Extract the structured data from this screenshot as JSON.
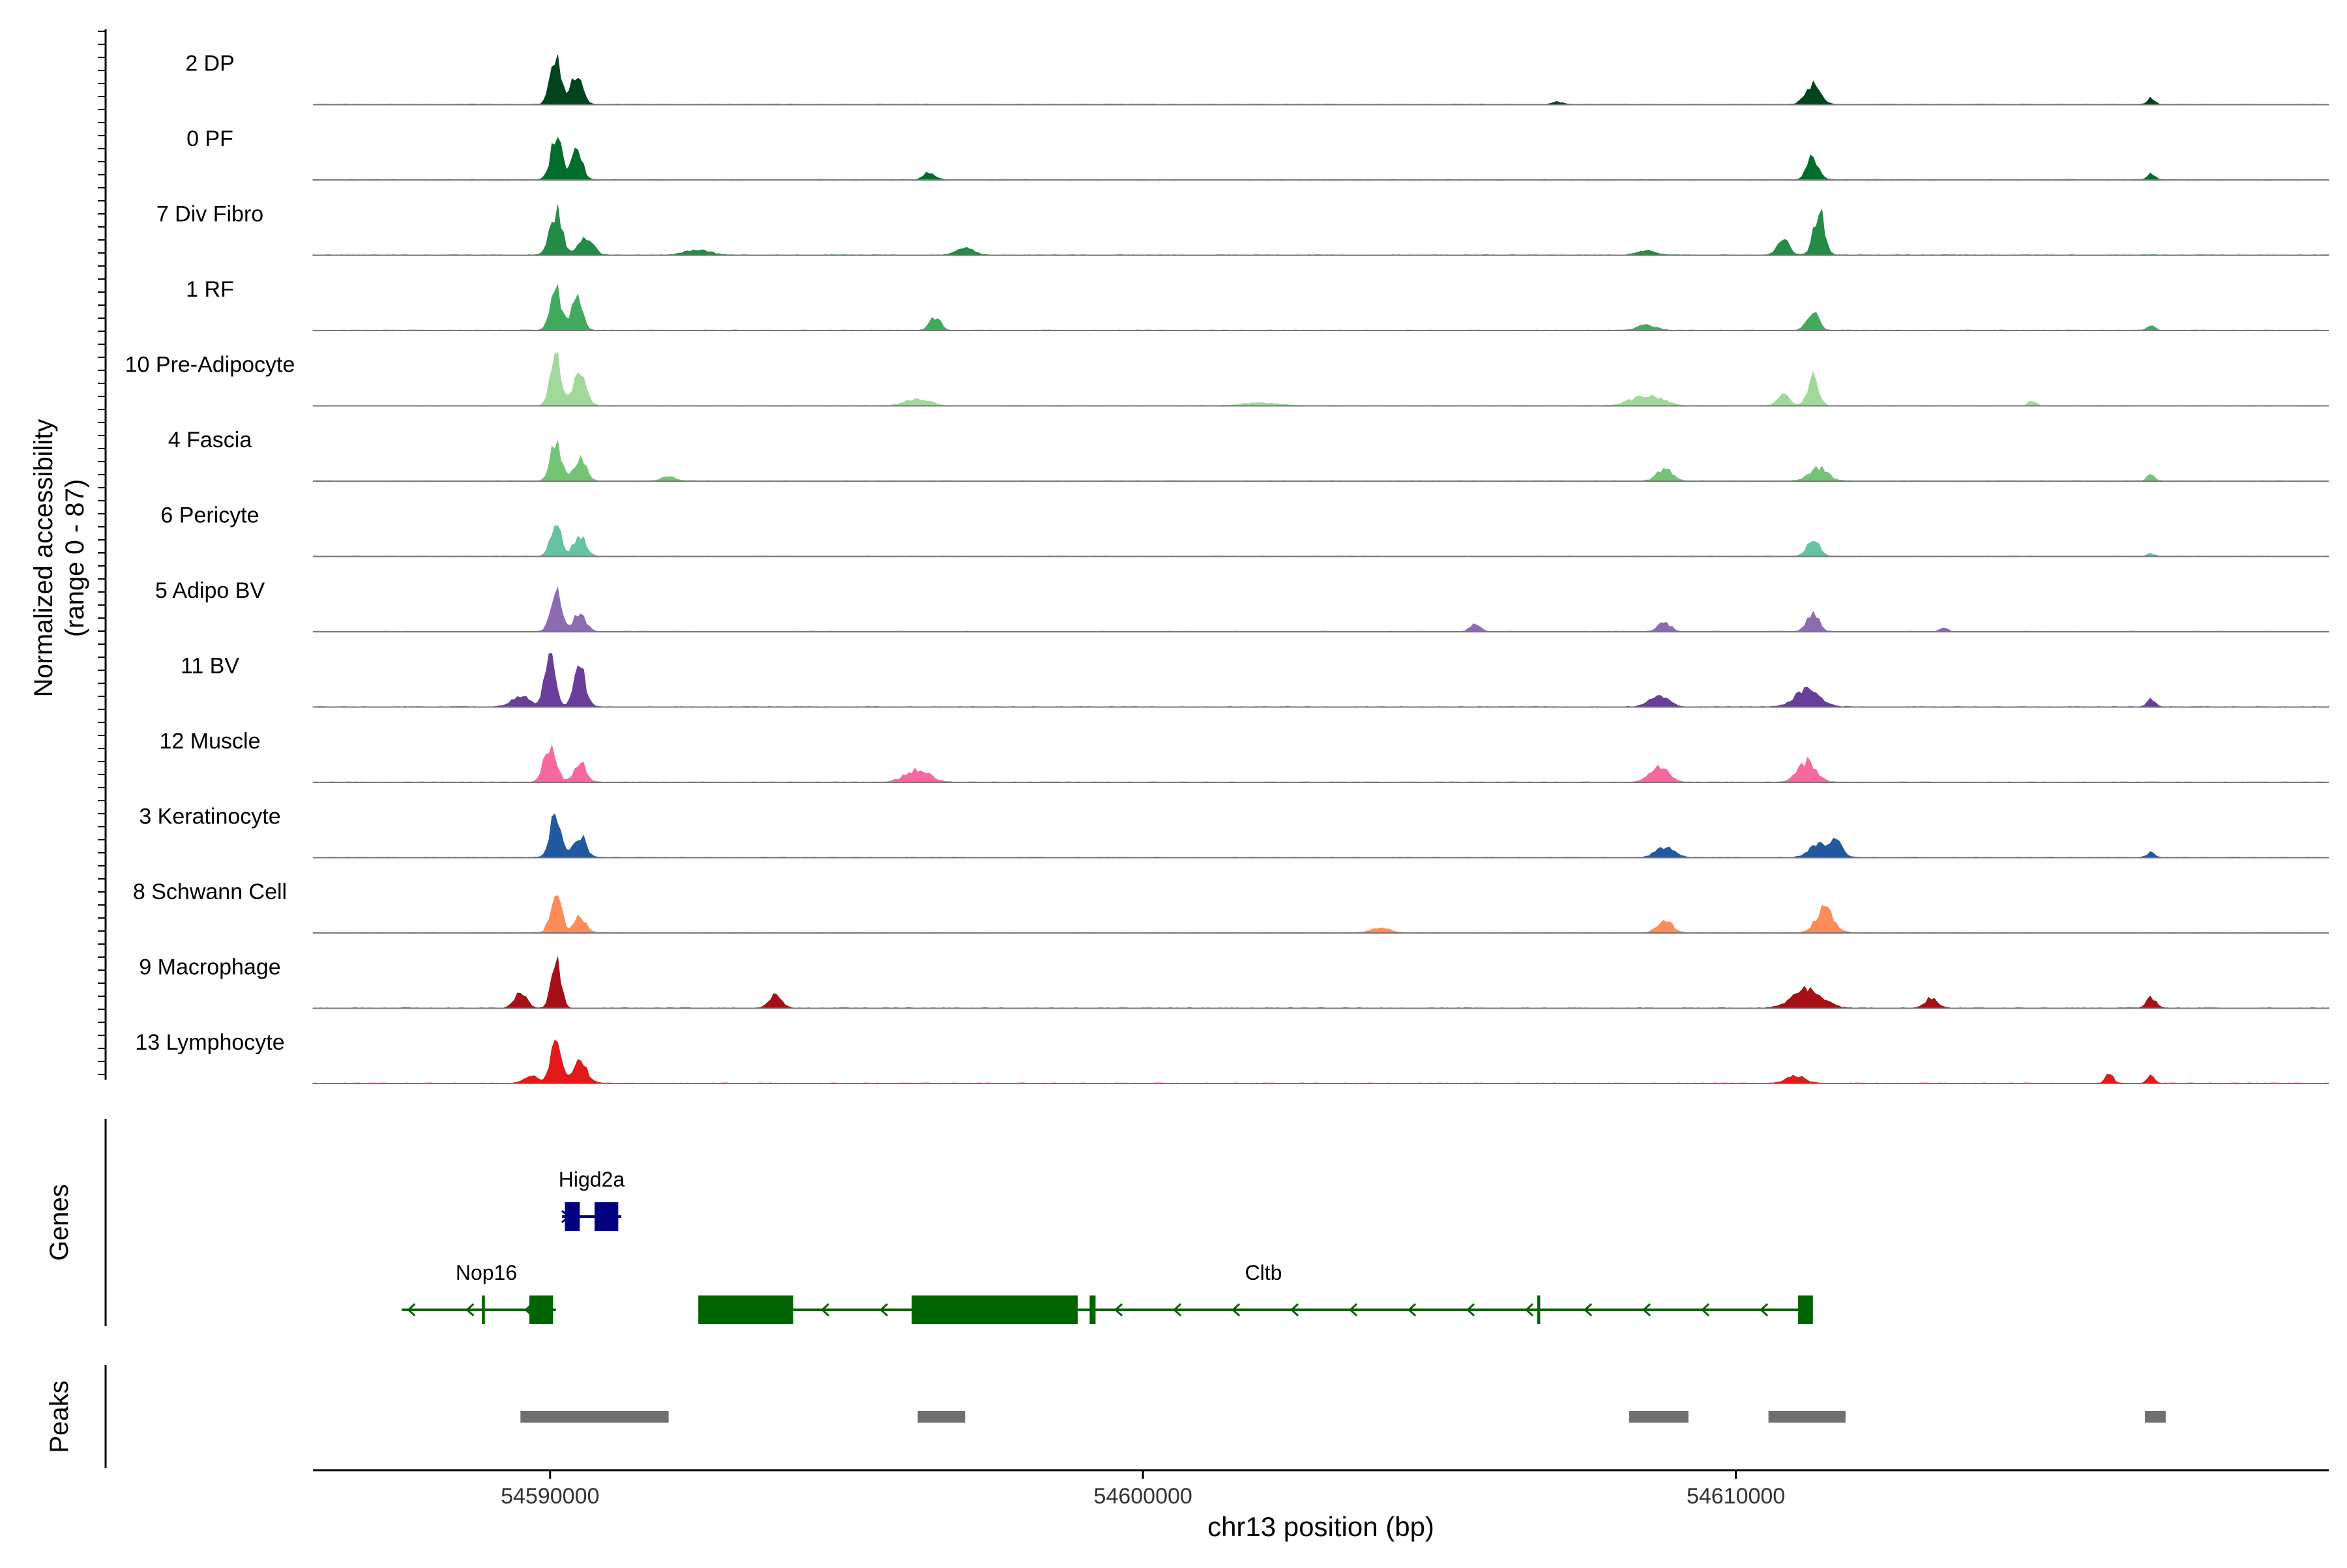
{
  "chart_data": {
    "type": "area",
    "title": "",
    "xlabel": "chr13 position (bp)",
    "ylabel_line1": "Normalized accessibility",
    "ylabel_line2": "(range 0 - 87)",
    "y_range": [
      0,
      87
    ],
    "xlim": [
      54586000,
      54620000
    ],
    "xticks": [
      {
        "value": 54590000,
        "label": "54590000"
      },
      {
        "value": 54600000,
        "label": "54600000"
      },
      {
        "value": 54610000,
        "label": "54610000"
      }
    ],
    "genes_label": "Genes",
    "peaks_label": "Peaks",
    "tracks": [
      {
        "name": "2 DP",
        "color": "#00441b",
        "peaks": [
          [
            54590100,
            0.95,
            90
          ],
          [
            54590450,
            0.6,
            90
          ],
          [
            54611300,
            0.38,
            120
          ],
          [
            54607000,
            0.05,
            80
          ],
          [
            54617000,
            0.12,
            60
          ]
        ]
      },
      {
        "name": "0 PF",
        "color": "#006d2c",
        "peaks": [
          [
            54590100,
            0.85,
            90
          ],
          [
            54590450,
            0.6,
            90
          ],
          [
            54596400,
            0.15,
            90
          ],
          [
            54611300,
            0.42,
            100
          ],
          [
            54617000,
            0.12,
            60
          ]
        ]
      },
      {
        "name": "7 Div Fibro",
        "color": "#238b45",
        "peaks": [
          [
            54590100,
            0.85,
            100
          ],
          [
            54590600,
            0.35,
            120
          ],
          [
            54592500,
            0.1,
            200
          ],
          [
            54597000,
            0.12,
            150
          ],
          [
            54608500,
            0.08,
            150
          ],
          [
            54610800,
            0.3,
            100
          ],
          [
            54611400,
            0.85,
            90
          ]
        ]
      },
      {
        "name": "1 RF",
        "color": "#41ab5d",
        "peaks": [
          [
            54590100,
            0.75,
            90
          ],
          [
            54590450,
            0.6,
            90
          ],
          [
            54596500,
            0.25,
            90
          ],
          [
            54608500,
            0.1,
            150
          ],
          [
            54611300,
            0.35,
            100
          ],
          [
            54617000,
            0.1,
            60
          ]
        ]
      },
      {
        "name": "10 Pre-Adipocyte",
        "color": "#a1d99b",
        "peaks": [
          [
            54590100,
            0.95,
            90
          ],
          [
            54590500,
            0.65,
            100
          ],
          [
            54596200,
            0.12,
            200
          ],
          [
            54602000,
            0.05,
            300
          ],
          [
            54608500,
            0.2,
            250
          ],
          [
            54610800,
            0.2,
            100
          ],
          [
            54611300,
            0.55,
            90
          ],
          [
            54615000,
            0.1,
            60
          ]
        ]
      },
      {
        "name": "4 Fascia",
        "color": "#74c476",
        "peaks": [
          [
            54590100,
            0.75,
            90
          ],
          [
            54590500,
            0.45,
            100
          ],
          [
            54592000,
            0.1,
            100
          ],
          [
            54608800,
            0.25,
            120
          ],
          [
            54611400,
            0.25,
            150
          ],
          [
            54617000,
            0.12,
            60
          ]
        ]
      },
      {
        "name": "6 Pericyte",
        "color": "#66c2a4",
        "peaks": [
          [
            54590100,
            0.65,
            90
          ],
          [
            54590500,
            0.4,
            100
          ],
          [
            54611300,
            0.35,
            100
          ],
          [
            54617000,
            0.05,
            60
          ]
        ]
      },
      {
        "name": "5 Adipo BV",
        "color": "#8c6bb1",
        "peaks": [
          [
            54590100,
            0.85,
            90
          ],
          [
            54590500,
            0.35,
            100
          ],
          [
            54605600,
            0.15,
            80
          ],
          [
            54608800,
            0.18,
            100
          ],
          [
            54611300,
            0.35,
            100
          ],
          [
            54613500,
            0.08,
            60
          ]
        ]
      },
      {
        "name": "11 BV",
        "color": "#6a3d9a",
        "peaks": [
          [
            54590000,
            0.95,
            90
          ],
          [
            54590500,
            0.85,
            90
          ],
          [
            54589500,
            0.2,
            150
          ],
          [
            54608700,
            0.25,
            150
          ],
          [
            54611200,
            0.35,
            200
          ],
          [
            54617000,
            0.18,
            60
          ]
        ]
      },
      {
        "name": "12 Muscle",
        "color": "#f768a1",
        "peaks": [
          [
            54590000,
            0.7,
            100
          ],
          [
            54590500,
            0.4,
            100
          ],
          [
            54596200,
            0.25,
            200
          ],
          [
            54608700,
            0.3,
            150
          ],
          [
            54611200,
            0.4,
            150
          ]
        ]
      },
      {
        "name": "3 Keratinocyte",
        "color": "#2159a0",
        "peaks": [
          [
            54590100,
            0.9,
            90
          ],
          [
            54590500,
            0.45,
            100
          ],
          [
            54608800,
            0.2,
            150
          ],
          [
            54611400,
            0.25,
            150
          ],
          [
            54611700,
            0.3,
            100
          ],
          [
            54617000,
            0.1,
            60
          ]
        ]
      },
      {
        "name": "8 Schwann Cell",
        "color": "#fc8d59",
        "peaks": [
          [
            54590100,
            0.75,
            90
          ],
          [
            54590500,
            0.3,
            100
          ],
          [
            54604000,
            0.1,
            150
          ],
          [
            54608800,
            0.25,
            120
          ],
          [
            54611500,
            0.45,
            150
          ]
        ]
      },
      {
        "name": "9 Macrophage",
        "color": "#a50f15",
        "peaks": [
          [
            54590100,
            1.0,
            80
          ],
          [
            54589500,
            0.3,
            100
          ],
          [
            54593800,
            0.25,
            100
          ],
          [
            54611200,
            0.35,
            250
          ],
          [
            54613300,
            0.2,
            100
          ],
          [
            54617000,
            0.2,
            80
          ]
        ]
      },
      {
        "name": "13 Lymphocyte",
        "color": "#e31a1c",
        "peaks": [
          [
            54590100,
            1.0,
            80
          ],
          [
            54590500,
            0.4,
            120
          ],
          [
            54589700,
            0.15,
            120
          ],
          [
            54611000,
            0.15,
            150
          ],
          [
            54616300,
            0.2,
            60
          ],
          [
            54617000,
            0.15,
            60
          ]
        ]
      }
    ],
    "genes": [
      {
        "name": "Higd2a",
        "color": "#000080",
        "strand": "+",
        "start": 54590200,
        "end": 54591200,
        "row": 0,
        "exons": [
          [
            54590250,
            54590500
          ],
          [
            54590750,
            54591150
          ]
        ]
      },
      {
        "name": "Nop16",
        "color": "#006400",
        "strand": "-",
        "start": 54587500,
        "end": 54590100,
        "row": 1,
        "exons": [
          [
            54588850,
            54588900
          ],
          [
            54589650,
            54590050
          ]
        ]
      },
      {
        "name": "Cltb",
        "color": "#006400",
        "strand": "-",
        "start": 54592500,
        "end": 54611300,
        "row": 1,
        "exons": [
          [
            54592500,
            54594100
          ],
          [
            54596100,
            54598900
          ],
          [
            54599100,
            54599200
          ],
          [
            54606650,
            54606700
          ],
          [
            54611050,
            54611300
          ]
        ]
      }
    ],
    "peak_regions": [
      [
        54589500,
        54592000
      ],
      [
        54596200,
        54597000
      ],
      [
        54608200,
        54609200
      ],
      [
        54610550,
        54611850
      ],
      [
        54616900,
        54617250
      ]
    ]
  }
}
